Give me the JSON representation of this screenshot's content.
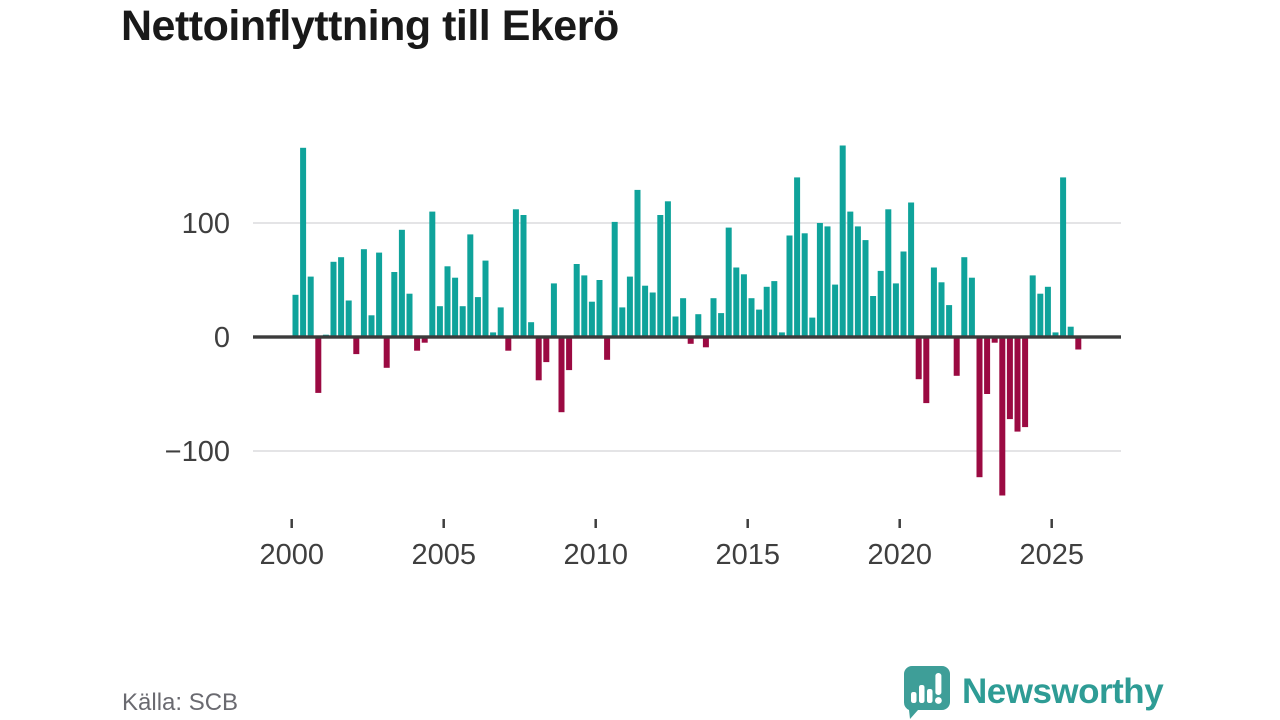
{
  "title": "Nettoinflyttning till Ekerö",
  "source_label": "Källa: SCB",
  "branding": {
    "name": "Newsworthy",
    "icon": "speech-bubble-bar-chart-icon"
  },
  "colors": {
    "positive_bar": "#0fa39b",
    "negative_bar": "#9b0a42",
    "axis_line": "#3b3b3b",
    "gridline": "#e4e4e6",
    "tick_label": "#3f3f3f",
    "title_text": "#191919",
    "source_text": "#6a6a70",
    "brand_teal": "#2e9c95",
    "logo_icon_teal": "#3e9e98"
  },
  "chart_data": {
    "type": "bar",
    "title": "Nettoinflyttning till Ekerö",
    "frequency": "quarterly",
    "start_year": 2000,
    "start_period": "2000 Q1",
    "end_period": "2025 Q4",
    "x_tick_labels": [
      "2000",
      "2005",
      "2010",
      "2015",
      "2020",
      "2025"
    ],
    "y_ticks": [
      100,
      0,
      -100
    ],
    "y_tick_labels": [
      "100",
      "0",
      "−100"
    ],
    "ylim": [
      -150,
      178
    ],
    "grid": "horizontal lines at 100 and -100 only",
    "legend": "none",
    "values": [
      37,
      166,
      53,
      -49,
      2,
      66,
      70,
      32,
      -15,
      77,
      19,
      74,
      -27,
      57,
      94,
      38,
      -12,
      -5,
      110,
      27,
      62,
      52,
      27,
      90,
      35,
      67,
      4,
      26,
      -12,
      112,
      107,
      13,
      -38,
      -22,
      47,
      -66,
      -29,
      64,
      54,
      31,
      50,
      -20,
      101,
      26,
      53,
      129,
      45,
      39,
      107,
      119,
      18,
      34,
      -6,
      20,
      -9,
      34,
      21,
      96,
      61,
      55,
      34,
      24,
      44,
      49,
      4,
      89,
      140,
      91,
      17,
      100,
      97,
      46,
      168,
      110,
      97,
      85,
      36,
      58,
      112,
      47,
      75,
      118,
      -37,
      -58,
      61,
      48,
      28,
      -34,
      70,
      52,
      -123,
      -50,
      -5,
      -139,
      -72,
      -83,
      -79,
      54,
      38,
      44,
      4,
      140,
      9,
      -11
    ]
  }
}
